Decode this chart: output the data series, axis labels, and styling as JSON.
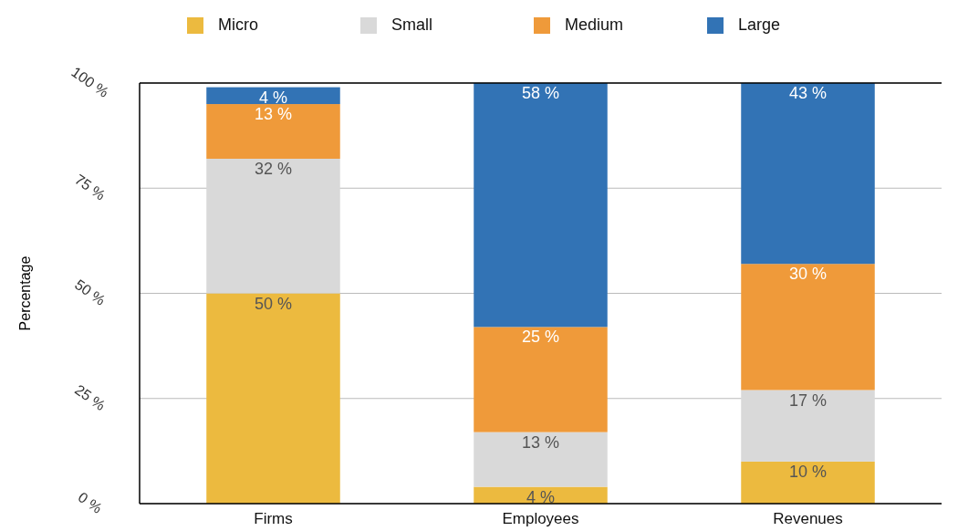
{
  "chart_data": {
    "type": "bar",
    "stacked": true,
    "ylabel": "Percentage",
    "categories": [
      "Firms",
      "Employees",
      "Revenues"
    ],
    "series": [
      {
        "name": "Micro",
        "color": "#ecba3f",
        "values": [
          50,
          4,
          10
        ],
        "value_labels": [
          "50 %",
          "4 %",
          "10 %"
        ]
      },
      {
        "name": "Small",
        "color": "#d9d9d9",
        "values": [
          32,
          13,
          17
        ],
        "value_labels": [
          "32 %",
          "13 %",
          "17 %"
        ]
      },
      {
        "name": "Medium",
        "color": "#ef9a3a",
        "values": [
          13,
          25,
          30
        ],
        "value_labels": [
          "13 %",
          "25 %",
          "30 %"
        ]
      },
      {
        "name": "Large",
        "color": "#3273b5",
        "values": [
          4,
          58,
          43
        ],
        "value_labels": [
          "4 %",
          "58 %",
          "43 %"
        ]
      }
    ],
    "ylim": [
      0,
      100
    ],
    "yticks": [
      {
        "value": 0,
        "label": "0 %"
      },
      {
        "value": 25,
        "label": "25 %"
      },
      {
        "value": 50,
        "label": "50 %"
      },
      {
        "value": 75,
        "label": "75 %"
      },
      {
        "value": 100,
        "label": "100 %"
      }
    ],
    "grid": "y",
    "legend": "top"
  }
}
